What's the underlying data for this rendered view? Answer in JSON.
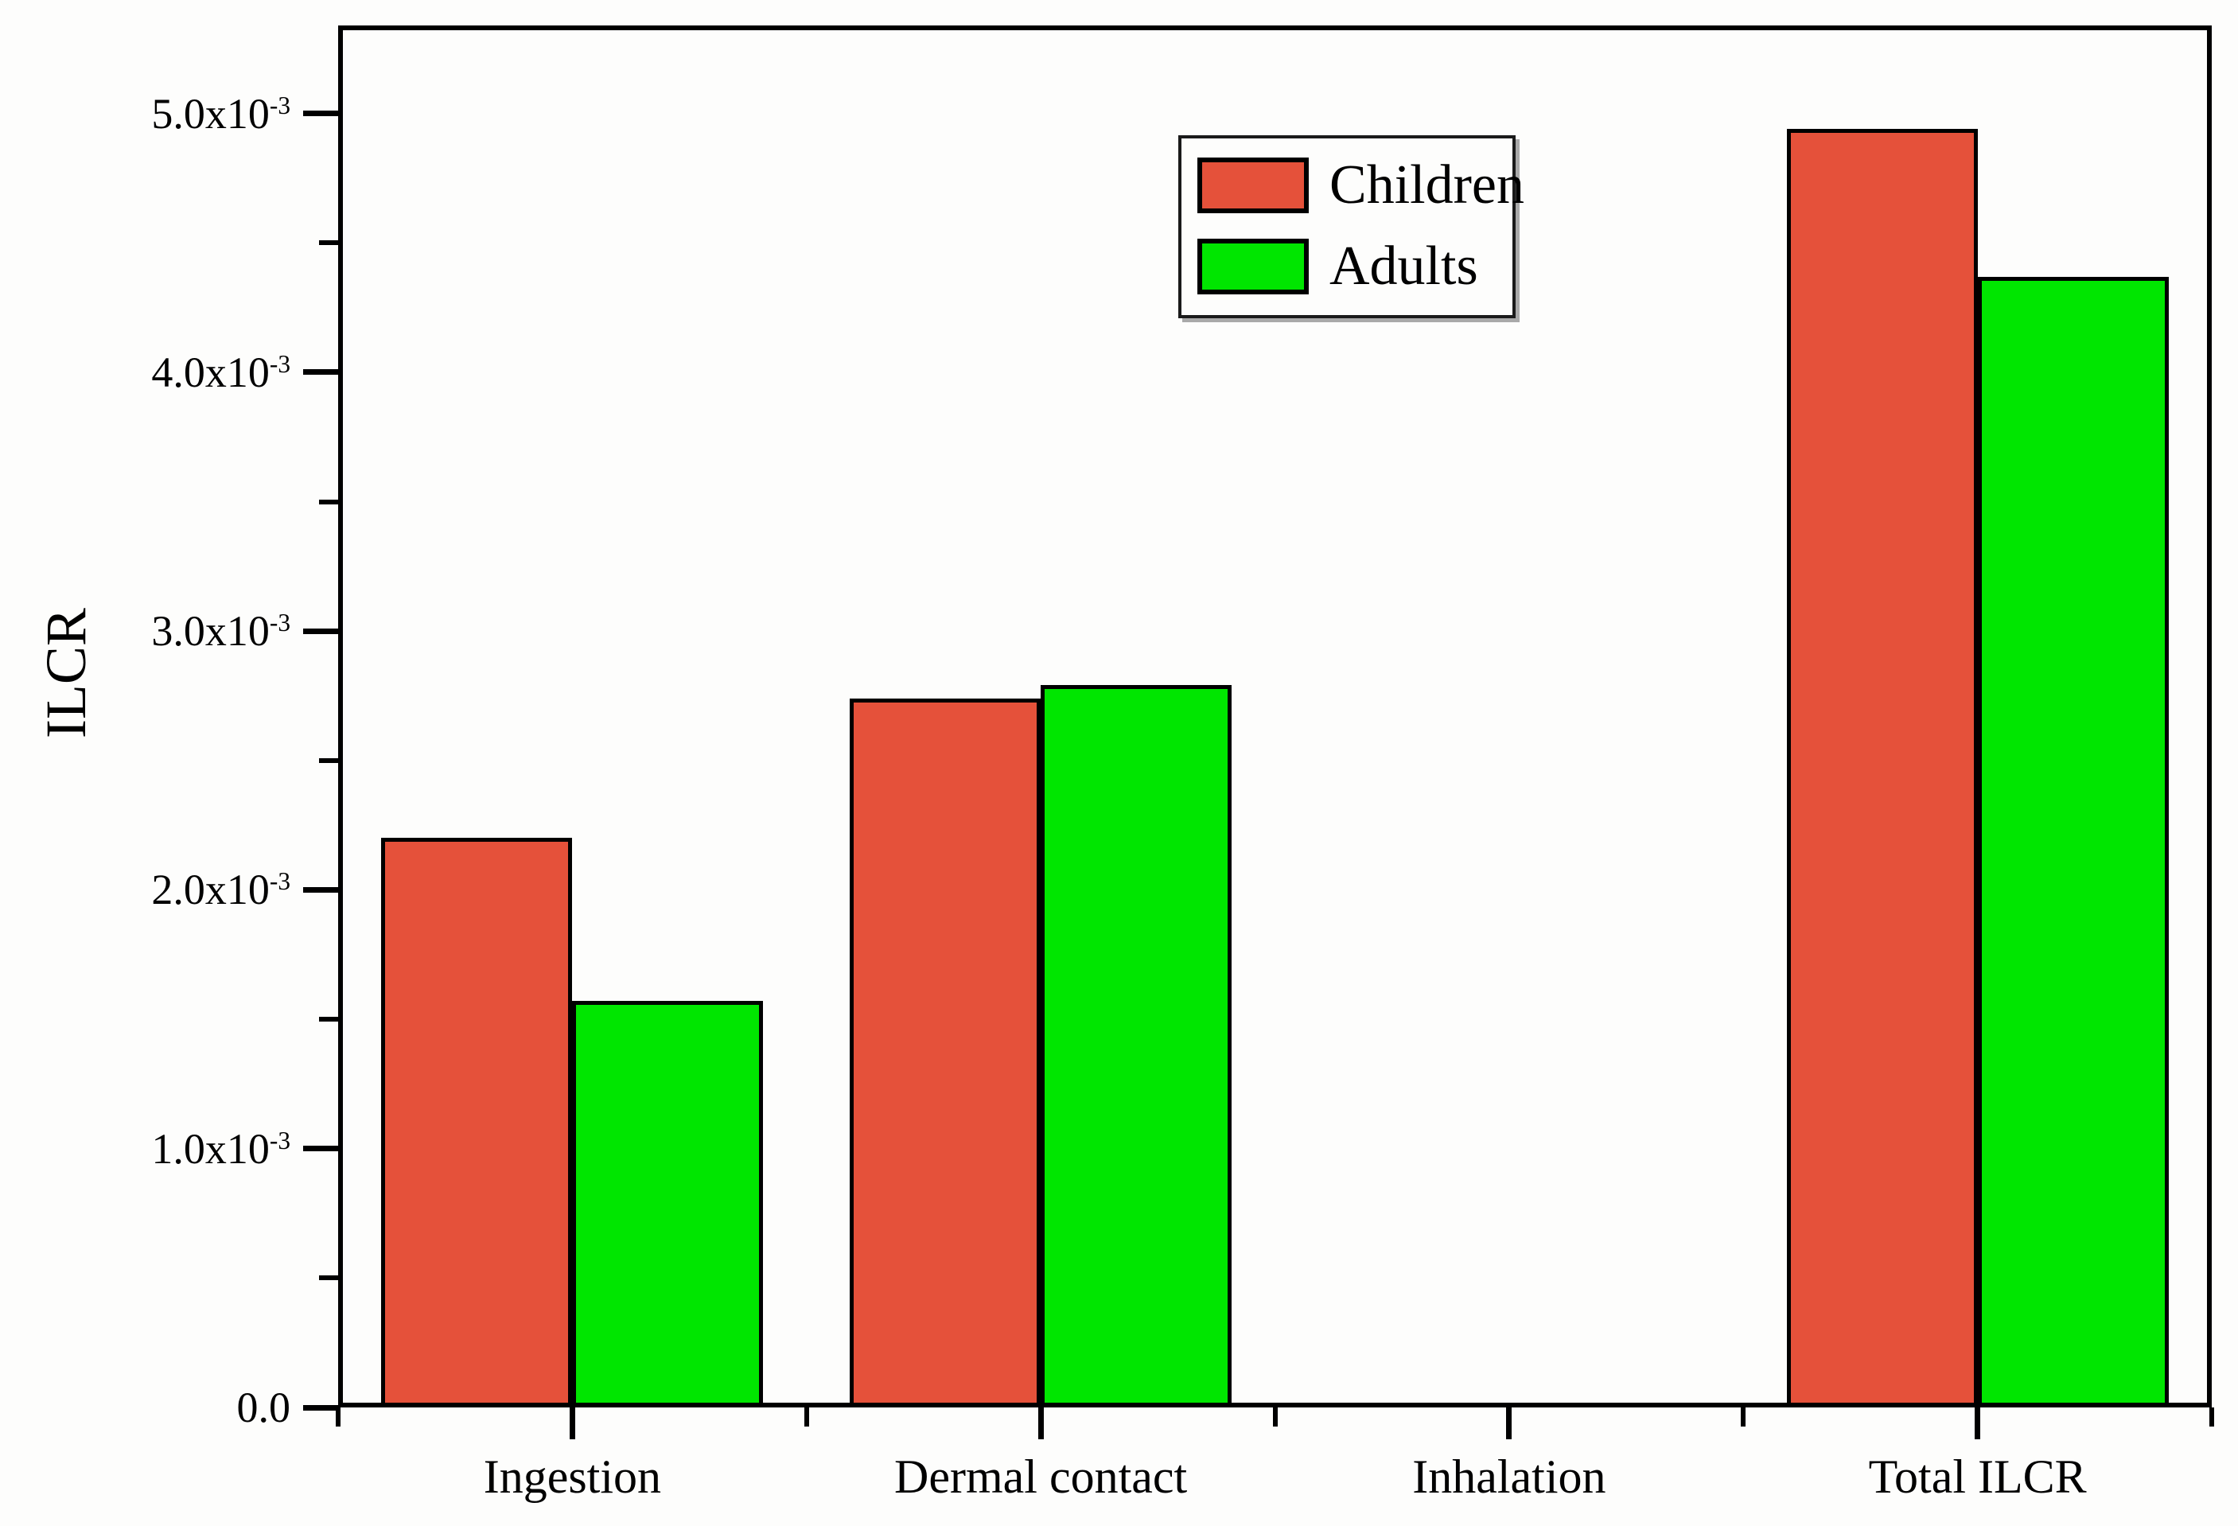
{
  "chart_data": {
    "type": "bar",
    "title": "",
    "xlabel": "",
    "ylabel": "ILCR",
    "categories": [
      "Ingestion",
      "Dermal contact",
      "Inhalation",
      "Total ILCR"
    ],
    "series": [
      {
        "name": "Children",
        "color": "#e5513a",
        "values": [
          0.0022,
          0.00274,
          0.0,
          0.00494
        ]
      },
      {
        "name": "Adults",
        "color": "#00e600",
        "values": [
          0.00157,
          0.00279,
          0.0,
          0.00437
        ]
      }
    ],
    "ylim": [
      0,
      0.00534
    ],
    "yticks": [
      {
        "value": 0.0,
        "mantissa": "0.0",
        "exponent": ""
      },
      {
        "value": 0.001,
        "mantissa": "1.0x10",
        "exponent": "-3"
      },
      {
        "value": 0.002,
        "mantissa": "2.0x10",
        "exponent": "-3"
      },
      {
        "value": 0.003,
        "mantissa": "3.0x10",
        "exponent": "-3"
      },
      {
        "value": 0.004,
        "mantissa": "4.0x10",
        "exponent": "-3"
      },
      {
        "value": 0.005,
        "mantissa": "5.0x10",
        "exponent": "-3"
      }
    ],
    "y_minor_step": 0.0005,
    "grid": false,
    "legend": {
      "position": "upper-center-right",
      "entries": [
        "Children",
        "Adults"
      ]
    },
    "frame_color": "#000000",
    "background_color": "#fdfdfc"
  }
}
